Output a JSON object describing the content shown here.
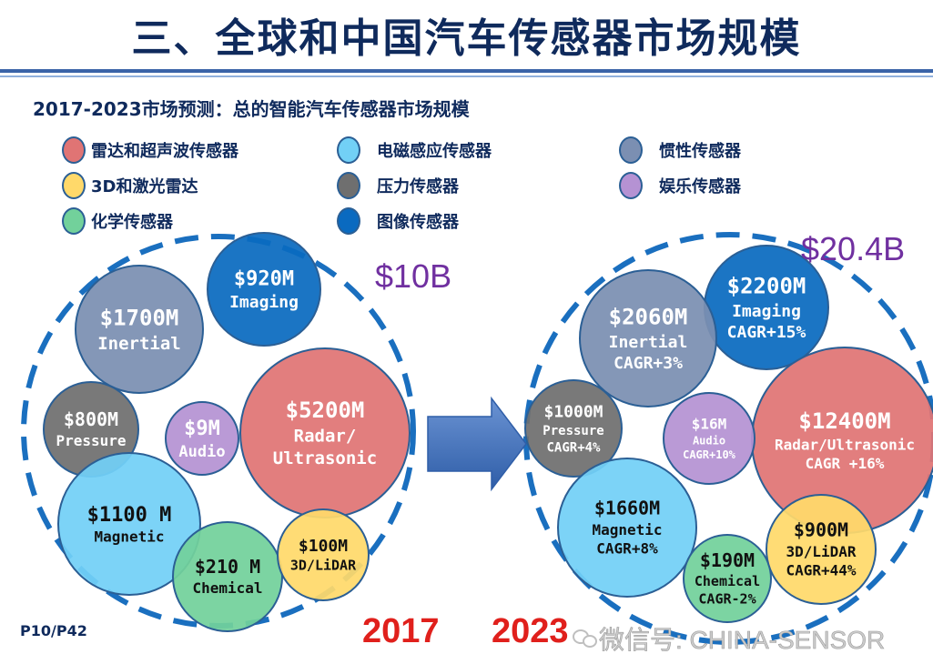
{
  "title": "三、全球和中国汽车传感器市场规模",
  "subtitle": "2017-2023市场预测：总的智能汽车传感器市场规模",
  "legend": [
    {
      "label": "雷达和超声波传感器",
      "color": "#e07474"
    },
    {
      "label": "电磁感应传感器",
      "color": "#72d0f6"
    },
    {
      "label": "惯性传感器",
      "color": "#7b8fb2"
    },
    {
      "label": "3D和激光雷达",
      "color": "#ffd96a"
    },
    {
      "label": "压力传感器",
      "color": "#6f6f6f"
    },
    {
      "label": "娱乐传感器",
      "color": "#b592d3"
    },
    {
      "label": "化学传感器",
      "color": "#72d19b"
    },
    {
      "label": "图像传感器",
      "color": "#0a6ac0"
    }
  ],
  "year_2017": {
    "year_label": "2017",
    "total_label": "$10B",
    "bubbles": [
      {
        "value": "$920M",
        "name": "Imaging",
        "color": "#0a6ac0",
        "text_color": "#ffffff"
      },
      {
        "value": "$1700M",
        "name": "Inertial",
        "color": "#7b8fb2",
        "text_color": "#ffffff"
      },
      {
        "value": "$5200M",
        "name": "Radar/",
        "name2": "Ultrasonic",
        "color": "#e07474",
        "text_color": "#ffffff"
      },
      {
        "value": "$800M",
        "name": "Pressure",
        "color": "#6f6f6f",
        "text_color": "#ffffff"
      },
      {
        "value": "$9M",
        "name": "Audio",
        "color": "#b592d3",
        "text_color": "#ffffff"
      },
      {
        "value": "$1100 M",
        "name": "Magnetic",
        "color": "#72d0f6",
        "text_color": "#111111"
      },
      {
        "value": "$210 M",
        "name": "Chemical",
        "color": "#72d19b",
        "text_color": "#111111"
      },
      {
        "value": "$100M",
        "name": "3D/LiDAR",
        "color": "#ffd96a",
        "text_color": "#111111"
      }
    ]
  },
  "year_2023": {
    "year_label": "2023",
    "total_label": "$20.4B",
    "bubbles": [
      {
        "value": "$2200M",
        "name": "Imaging",
        "cagr": "CAGR+15%",
        "color": "#0a6ac0",
        "text_color": "#ffffff"
      },
      {
        "value": "$2060M",
        "name": "Inertial",
        "cagr": "CAGR+3%",
        "color": "#7b8fb2",
        "text_color": "#ffffff"
      },
      {
        "value": "$12400M",
        "name": "Radar/Ultrasonic",
        "cagr": "CAGR +16%",
        "color": "#e07474",
        "text_color": "#ffffff"
      },
      {
        "value": "$1000M",
        "name": "Pressure",
        "cagr": "CAGR+4%",
        "color": "#6f6f6f",
        "text_color": "#ffffff"
      },
      {
        "value": "$16M",
        "name": "Audio",
        "cagr": "CAGR+10%",
        "color": "#b592d3",
        "text_color": "#ffffff"
      },
      {
        "value": "$1660M",
        "name": "Magnetic",
        "cagr": "CAGR+8%",
        "color": "#72d0f6",
        "text_color": "#111111"
      },
      {
        "value": "$190M",
        "name": "Chemical",
        "cagr": "CAGR-2%",
        "color": "#72d19b",
        "text_color": "#111111"
      },
      {
        "value": "$900M",
        "name": "3D/LiDAR",
        "cagr": "CAGR+44%",
        "color": "#ffd96a",
        "text_color": "#111111"
      }
    ]
  },
  "colors": {
    "total": "#7030a0",
    "year": "#e0201c",
    "dashed": "#1a6fbf",
    "arrow": "#4a78c0"
  },
  "watermark": "微信号: CHINA-SENSOR",
  "page_number": "P10/P42"
}
